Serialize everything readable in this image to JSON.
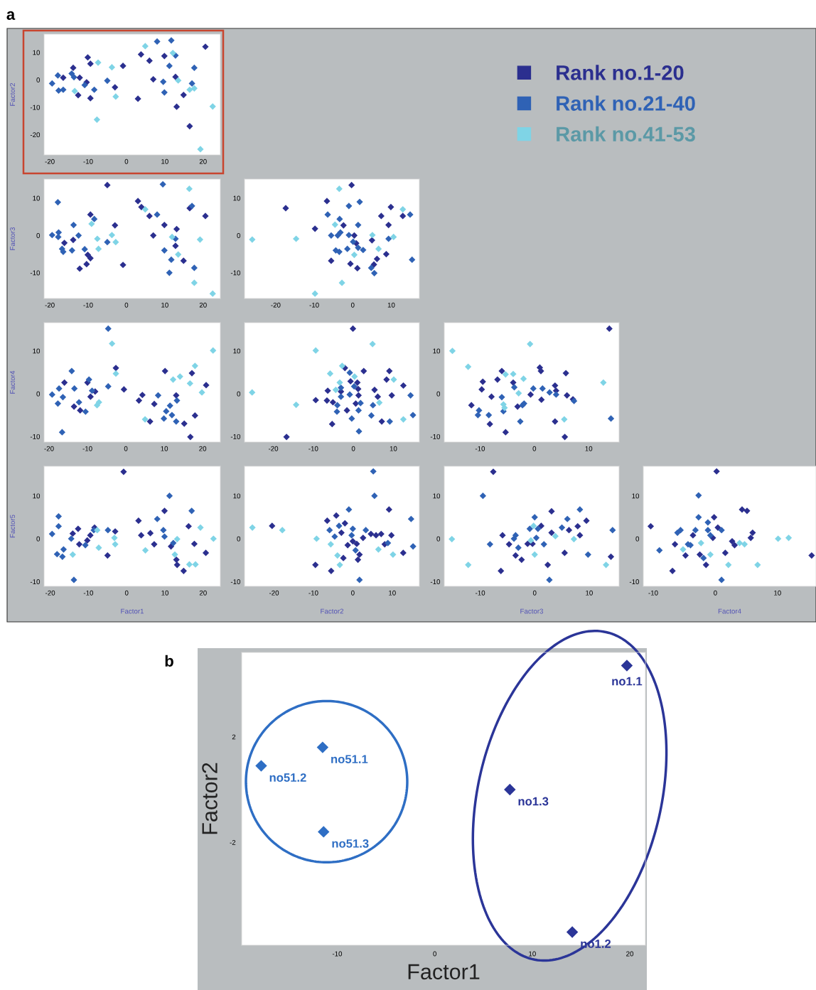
{
  "chart_data": [
    {
      "type": "scatter",
      "marker": "diamond",
      "annotations": [
        "a"
      ],
      "ylabel": "Factor2",
      "xlim": [
        -21.5,
        24.5
      ],
      "ylim": [
        -27.4,
        16.7
      ],
      "xticks": [
        -20,
        -10,
        0,
        10,
        20
      ],
      "yticks": [
        -20,
        -10,
        0,
        10
      ],
      "legend": "right",
      "series": [
        {
          "name": "Rank no.1-20",
          "color": "#2b2f8f",
          "x": [
            -16.5,
            -13.9,
            -12.2,
            -12.6,
            -10.4,
            -10.1,
            -9.4,
            -9.4,
            -3.0,
            -0.9,
            3.0,
            3.8,
            6.0,
            7.0,
            9.9,
            12.8,
            13.1,
            14.9,
            16.5,
            20.6
          ],
          "values": [
            0.8,
            4.4,
            0.8,
            -5.6,
            -0.9,
            8.2,
            5.9,
            -6.7,
            -2.7,
            5.1,
            -6.9,
            9.3,
            7.0,
            0.2,
            8.7,
            1.1,
            -9.8,
            -5.5,
            -16.9,
            12.1
          ]
        },
        {
          "name": "Rank no.21-40",
          "color": "#2f62b5",
          "x": [
            -19.4,
            -17.9,
            -17.7,
            -16.5,
            -14.3,
            -13.7,
            -10.9,
            -8.4,
            -5.0,
            8.0,
            9.6,
            9.9,
            11.2,
            11.7,
            12.8,
            17.1,
            17.7
          ],
          "values": [
            -1.3,
            1.6,
            -3.9,
            -3.6,
            2.3,
            1.0,
            -1.9,
            -3.6,
            -0.3,
            14.0,
            -0.7,
            -4.6,
            5.1,
            14.4,
            8.9,
            -1.3,
            4.4
          ]
        },
        {
          "name": "Rank no.41-53",
          "color": "#7fd4e6",
          "x": [
            -13.5,
            -7.4,
            -3.8,
            -2.8,
            -7.7,
            4.9,
            12.1,
            13.5,
            16.5,
            17.7,
            19.3,
            22.5
          ],
          "values": [
            -4.1,
            6.3,
            4.6,
            -6.1,
            -14.5,
            12.3,
            9.8,
            -0.2,
            -3.6,
            -3.1,
            -25.3,
            -9.7
          ]
        }
      ]
    },
    {
      "type": "scatter",
      "marker": "diamond",
      "ylabel": "Factor3",
      "xlim": [
        -21.5,
        24.5
      ],
      "ylim": [
        -16.9,
        15.1
      ],
      "xticks": [
        -20,
        -10,
        0,
        10,
        20
      ],
      "yticks": [
        -10,
        0,
        10
      ],
      "series": [
        {
          "color": "#2b2f8f",
          "x": [
            -16.2,
            -13.9,
            -12.2,
            -10.1,
            -10.4,
            -9.4,
            -9.4,
            -5.0,
            -3.0,
            -0.9,
            3.0,
            3.9,
            6.0,
            7.0,
            9.9,
            12.8,
            13.1,
            14.9,
            16.5,
            20.6
          ],
          "values": [
            -2.0,
            -1.2,
            -8.9,
            -5.2,
            -7.7,
            -6.1,
            5.6,
            13.5,
            2.7,
            -7.9,
            9.2,
            7.6,
            5.2,
            0.0,
            2.8,
            -2.8,
            1.7,
            -6.8,
            7.3,
            5.2
          ]
        },
        {
          "color": "#2f62b5",
          "x": [
            -19.4,
            -17.9,
            -17.7,
            -17.8,
            -16.8,
            -16.5,
            -13.8,
            -14.2,
            -12.5,
            -10.9,
            -8.4,
            -5.0,
            8.0,
            9.5,
            9.9,
            11.2,
            11.7,
            12.8,
            17.1,
            17.7
          ],
          "values": [
            0.1,
            8.9,
            0.8,
            -0.4,
            -3.6,
            -4.4,
            2.8,
            -4.0,
            0.0,
            -3.7,
            4.4,
            -1.8,
            5.6,
            13.7,
            -4.0,
            -10.0,
            -6.5,
            -0.9,
            7.9,
            -8.7
          ]
        },
        {
          "color": "#7fd4e6",
          "x": [
            -9.1,
            -7.6,
            -7.3,
            -3.8,
            -2.8,
            4.9,
            11.9,
            13.5,
            16.4,
            17.7,
            19.2,
            22.5
          ],
          "values": [
            3.1,
            -0.9,
            -3.6,
            0.1,
            -1.8,
            7.0,
            -0.4,
            -5.1,
            12.5,
            -12.7,
            -1.1,
            -15.6
          ]
        }
      ]
    },
    {
      "type": "scatter",
      "marker": "diamond",
      "xlim": [
        -28.1,
        17.3
      ],
      "ylim": [
        -16.9,
        15.1
      ],
      "xticks": [
        -20,
        -10,
        0,
        10
      ],
      "yticks": [
        -10,
        0,
        10
      ],
      "series": [
        {
          "color": "#2b2f8f",
          "x": [
            -17.4,
            -9.8,
            -6.7,
            -5.6,
            -2.4,
            -0.6,
            -0.3,
            0.4,
            0.9,
            1.2,
            5.0,
            5.5,
            6.3,
            7.4,
            8.7,
            9.3,
            9.9,
            13.0
          ],
          "values": [
            7.3,
            1.8,
            9.2,
            -6.8,
            2.7,
            -7.6,
            13.5,
            0.0,
            -2.1,
            -8.8,
            -1.3,
            -7.8,
            -6.3,
            5.2,
            -5.0,
            2.8,
            7.6,
            5.2
          ]
        },
        {
          "color": "#2f62b5",
          "x": [
            -6.5,
            -5.6,
            -3.4,
            -4.4,
            -3.5,
            -3.2,
            -3.9,
            -1.4,
            -1.0,
            -1.0,
            0.1,
            1.4,
            1.4,
            1.8,
            2.7,
            4.8,
            5.6,
            9.3,
            14.9,
            15.4
          ],
          "values": [
            5.6,
            0.0,
            4.4,
            -4.0,
            -4.4,
            0.8,
            0.0,
            -3.6,
            7.9,
            0.1,
            -1.7,
            2.8,
            -3.3,
            9.0,
            -3.9,
            -8.7,
            -10.1,
            -0.9,
            5.6,
            -6.5
          ]
        },
        {
          "color": "#7fd4e6",
          "x": [
            -26.1,
            -14.7,
            -9.8,
            -4.6,
            -3.5,
            -2.8,
            0.4,
            5.1,
            6.7,
            10.6,
            13.0
          ],
          "values": [
            -1.1,
            -0.9,
            -15.6,
            2.9,
            12.5,
            -12.7,
            -5.2,
            0.1,
            -3.6,
            -0.4,
            7.0
          ]
        }
      ]
    },
    {
      "type": "scatter",
      "marker": "diamond",
      "ylabel": "Factor4",
      "xlim": [
        -21.3,
        24.6
      ],
      "ylim": [
        -11.3,
        16.6
      ],
      "xticks": [
        -20,
        -10,
        0,
        10,
        20
      ],
      "yticks": [
        -10,
        0,
        10
      ],
      "series": [
        {
          "color": "#2b2f8f",
          "x": [
            -16.0,
            -13.5,
            -11.9,
            -10.0,
            -9.2,
            -8.0,
            -2.6,
            -0.5,
            3.4,
            4.3,
            6.3,
            7.4,
            10.2,
            13.1,
            15.2,
            17.2,
            16.8,
            18.0,
            20.9
          ],
          "values": [
            2.6,
            -3.0,
            -3.9,
            2.6,
            -0.7,
            0.5,
            6.0,
            1.0,
            -1.6,
            -0.3,
            -6.5,
            -2.4,
            5.3,
            -0.4,
            -7.0,
            4.8,
            -10.1,
            -5.1,
            2.0
          ]
        },
        {
          "color": "#2f62b5",
          "x": [
            -19.2,
            -17.4,
            -17.7,
            -16.6,
            -16.4,
            -14.1,
            -13.4,
            -12.2,
            -10.5,
            -9.6,
            -8.8,
            -4.6,
            -4.6,
            8.4,
            9.9,
            10.5,
            11.5,
            12.0,
            13.3,
            13.1
          ],
          "values": [
            -0.2,
            1.2,
            -2.3,
            -9.0,
            -0.8,
            5.3,
            1.2,
            -2.0,
            -4.2,
            3.3,
            0.7,
            15.2,
            1.7,
            -0.4,
            -5.8,
            -4.1,
            -2.8,
            -5.0,
            -1.6,
            -6.5
          ]
        },
        {
          "color": "#7fd4e6",
          "x": [
            -7.5,
            -7.0,
            -3.6,
            -2.6,
            5.0,
            12.3,
            14.1,
            16.7,
            18.0,
            19.8,
            22.7
          ],
          "values": [
            -2.7,
            -2.0,
            11.7,
            4.7,
            -6.0,
            3.3,
            4.0,
            2.4,
            6.5,
            0.3,
            10.1
          ]
        }
      ]
    },
    {
      "type": "scatter",
      "marker": "diamond",
      "xlim": [
        -27.2,
        16.5
      ],
      "ylim": [
        -11.3,
        16.6
      ],
      "xticks": [
        -20,
        -10,
        0,
        10
      ],
      "yticks": [
        -10,
        0,
        10
      ],
      "series": [
        {
          "color": "#2b2f8f",
          "x": [
            -16.7,
            -9.4,
            -6.4,
            -6.6,
            -5.3,
            -5.1,
            -3.1,
            -2.1,
            -1.6,
            -0.7,
            -0.1,
            0.6,
            1.0,
            1.2,
            1.3,
            2.6,
            5.3,
            6.1,
            7.1,
            8.3,
            9.0,
            9.6,
            12.5
          ],
          "values": [
            -10.1,
            -1.5,
            0.7,
            -1.6,
            -7.1,
            -2.0,
            0.5,
            6.0,
            -3.9,
            2.9,
            15.2,
            -2.3,
            2.6,
            1.1,
            -0.4,
            5.3,
            0.9,
            -0.7,
            -6.5,
            3.3,
            5.3,
            -0.4,
            1.9
          ]
        },
        {
          "color": "#2f62b5",
          "x": [
            -4.0,
            -4.1,
            -3.1,
            -3.1,
            -0.9,
            -0.9,
            -0.4,
            0.2,
            1.3,
            1.4,
            1.8,
            4.5,
            4.9,
            9.1,
            14.3,
            14.9
          ],
          "values": [
            -2.7,
            -4.2,
            -0.7,
            1.4,
            -0.2,
            4.9,
            -5.8,
            1.7,
            -3.9,
            -8.8,
            -2.2,
            -5.1,
            -2.7,
            -6.5,
            -0.4,
            -5.0
          ]
        },
        {
          "color": "#7fd4e6",
          "x": [
            -25.3,
            -14.3,
            -9.4,
            -5.8,
            -4.4,
            -3.4,
            -2.8,
            0.3,
            4.8,
            6.5,
            10.1,
            12.5
          ],
          "values": [
            0.3,
            -2.6,
            10.1,
            4.7,
            0.9,
            2.6,
            6.5,
            4.0,
            11.6,
            -2.1,
            3.3,
            -6.0
          ]
        }
      ]
    },
    {
      "type": "scatter",
      "marker": "diamond",
      "xlim": [
        -16.6,
        15.6
      ],
      "ylim": [
        -11.3,
        16.6
      ],
      "xticks": [
        -10,
        0,
        10
      ],
      "yticks": [
        -10,
        0,
        10
      ],
      "series": [
        {
          "color": "#2b2f8f",
          "x": [
            -11.6,
            -9.5,
            -9.7,
            -8.2,
            -7.9,
            -6.8,
            -6.0,
            -5.3,
            -3.9,
            -3.1,
            -0.7,
            1.3,
            1.0,
            1.2,
            3.8,
            4.0,
            3.8,
            5.6,
            5.8,
            6.0,
            7.1,
            13.8
          ],
          "values": [
            -2.7,
            2.8,
            1.0,
            -7.1,
            -0.7,
            3.3,
            5.3,
            -9.0,
            2.6,
            -3.0,
            -0.2,
            -1.4,
            6.1,
            5.3,
            1.9,
            0.7,
            -6.5,
            -10.1,
            4.8,
            -0.4,
            -1.3,
            15.2
          ]
        },
        {
          "color": "#2f62b5",
          "x": [
            -10.2,
            -10.4,
            -8.4,
            -6.0,
            -5.7,
            -3.7,
            -2.6,
            -2.2,
            -1.9,
            -0.2,
            1.5,
            2.8,
            4.0,
            7.3,
            14.1
          ],
          "values": [
            -3.9,
            -5.0,
            -5.0,
            -0.8,
            -4.1,
            1.5,
            -6.5,
            -2.7,
            -2.3,
            1.2,
            1.2,
            0.3,
            -0.2,
            -1.7,
            -5.8
          ]
        },
        {
          "color": "#7fd4e6",
          "x": [
            -15.1,
            -12.2,
            -5.7,
            -5.5,
            -5.3,
            -3.9,
            -2.9,
            -2.0,
            -0.8,
            5.5,
            12.7
          ],
          "values": [
            10.0,
            6.3,
            -2.5,
            -3.3,
            4.5,
            4.6,
            0.1,
            3.5,
            11.6,
            -6.0,
            2.6
          ]
        }
      ]
    },
    {
      "type": "scatter",
      "marker": "diamond",
      "xlabel": "Factor1",
      "ylabel": "Factor5",
      "xlim": [
        -21.6,
        24.5
      ],
      "ylim": [
        -11.1,
        16.9
      ],
      "xticks": [
        -20,
        -10,
        0,
        10,
        20
      ],
      "yticks": [
        -10,
        0,
        10
      ],
      "series": [
        {
          "color": "#2b2f8f",
          "x": [
            -14.1,
            -12.7,
            -12.4,
            -10.3,
            -9.5,
            -8.4,
            -5.0,
            -3.0,
            -0.8,
            3.1,
            3.8,
            6.2,
            7.2,
            9.9,
            11.6,
            13.0,
            13.2,
            14.9,
            16.2,
            17.7,
            20.7
          ],
          "values": [
            1.2,
            2.3,
            -1.3,
            -0.4,
            0.8,
            2.6,
            -3.9,
            1.7,
            15.6,
            4.2,
            0.8,
            1.3,
            -1.3,
            6.5,
            -1.8,
            -4.9,
            -6.1,
            -7.5,
            2.9,
            -1.2,
            -3.3
          ]
        },
        {
          "color": "#2f62b5",
          "x": [
            -19.5,
            -17.8,
            -17.8,
            -18.2,
            -16.8,
            -16.5,
            -14.5,
            -13.8,
            -10.8,
            -8.6,
            -4.9,
            8.0,
            9.6,
            9.9,
            11.2,
            12.2,
            17.0
          ],
          "values": [
            1.1,
            5.2,
            2.9,
            -3.6,
            -4.2,
            -2.5,
            0.0,
            -9.6,
            -1.5,
            2.0,
            2.0,
            4.6,
            2.0,
            0.5,
            10.0,
            -1.0,
            6.5
          ]
        },
        {
          "color": "#7fd4e6",
          "x": [
            -14.1,
            -7.7,
            -7.3,
            -3.2,
            -3.0,
            4.9,
            13.2,
            12.6,
            16.4,
            18.0,
            19.3,
            22.7
          ],
          "values": [
            -3.7,
            2.0,
            -2.1,
            0.2,
            -1.3,
            -2.7,
            -0.1,
            -3.7,
            -6.0,
            -6.0,
            2.6,
            0.0
          ]
        }
      ]
    },
    {
      "type": "scatter",
      "marker": "diamond",
      "xlabel": "Factor2",
      "xlim": [
        -27.5,
        16.9
      ],
      "ylim": [
        -11.1,
        16.9
      ],
      "xticks": [
        -20,
        -10,
        0,
        10
      ],
      "yticks": [
        -10,
        0,
        10
      ],
      "series": [
        {
          "color": "#2b2f8f",
          "x": [
            -20.5,
            -9.5,
            -6.5,
            -5.5,
            -4.2,
            -2.9,
            -2.4,
            -2.0,
            -1.3,
            0.0,
            1.0,
            1.3,
            1.7,
            2.6,
            4.6,
            5.9,
            7.2,
            8.1,
            9.2,
            9.8,
            12.8
          ],
          "values": [
            3.0,
            -6.1,
            4.2,
            -7.5,
            5.4,
            1.4,
            -4.5,
            3.6,
            -1.5,
            -0.6,
            -1.2,
            -4.9,
            -3.7,
            0.2,
            1.1,
            0.8,
            1.1,
            -1.3,
            6.8,
            0.8,
            -3.3
          ]
        },
        {
          "color": "#2f62b5",
          "x": [
            -5.9,
            -4.6,
            -3.5,
            -1.0,
            -0.3,
            0.0,
            0.7,
            1.7,
            3.3,
            5.2,
            5.5,
            8.9,
            14.8,
            15.3
          ],
          "values": [
            2.0,
            0.5,
            3.0,
            6.8,
            0.8,
            2.3,
            -2.7,
            -9.6,
            2.0,
            15.7,
            10.0,
            -1.0,
            4.6,
            -1.8
          ]
        },
        {
          "color": "#7fd4e6",
          "x": [
            -25.5,
            -17.9,
            -9.2,
            -5.6,
            -3.9,
            -3.3,
            6.5,
            10.2
          ],
          "values": [
            2.6,
            2.0,
            0.0,
            -1.3,
            -3.9,
            -6.1,
            -2.5,
            -3.7
          ]
        }
      ]
    },
    {
      "type": "scatter",
      "marker": "diamond",
      "xlabel": "Factor3",
      "xlim": [
        -16.6,
        15.5
      ],
      "ylim": [
        -11.1,
        16.9
      ],
      "xticks": [
        -10,
        0,
        10
      ],
      "yticks": [
        -10,
        0,
        10
      ],
      "series": [
        {
          "color": "#2b2f8f",
          "x": [
            -7.6,
            -6.2,
            -5.9,
            -4.7,
            -3.5,
            -2.4,
            -1.3,
            -0.4,
            1.2,
            2.4,
            3.1,
            3.1,
            5.5,
            6.3,
            7.9,
            8.3,
            9.5,
            14.0
          ],
          "values": [
            15.6,
            -7.5,
            0.8,
            -1.3,
            -3.9,
            -4.9,
            -1.2,
            -1.2,
            3.0,
            -6.1,
            6.4,
            1.4,
            -3.3,
            2.0,
            2.9,
            0.8,
            4.2,
            -4.2
          ]
        },
        {
          "color": "#2f62b5",
          "x": [
            -9.5,
            -8.2,
            -3.8,
            -3.5,
            -3.0,
            -0.9,
            0.0,
            0.3,
            0.6,
            1.7,
            2.7,
            5.0,
            6.0,
            8.3,
            9.8,
            14.3
          ],
          "values": [
            10.0,
            -1.3,
            0.0,
            0.8,
            -2.1,
            2.3,
            5.0,
            0.2,
            2.3,
            -1.3,
            -9.6,
            2.6,
            4.6,
            6.8,
            -3.7,
            2.0
          ]
        },
        {
          "color": "#7fd4e6",
          "x": [
            -15.2,
            -12.2,
            -0.7,
            -0.2,
            0.0,
            3.8,
            7.2,
            13.1
          ],
          "values": [
            -0.1,
            -6.1,
            -0.4,
            3.0,
            -3.7,
            0.6,
            -0.1,
            -6.1
          ]
        }
      ]
    },
    {
      "type": "scatter",
      "marker": "diamond",
      "xlabel": "Factor4",
      "xlim": [
        -11.6,
        16.2
      ],
      "ylim": [
        -11.1,
        16.9
      ],
      "xticks": [
        -10,
        0,
        10
      ],
      "yticks": [
        -10,
        0,
        10
      ],
      "series": [
        {
          "color": "#2b2f8f",
          "x": [
            -10.4,
            -6.9,
            -6.5,
            -4.8,
            -3.6,
            -2.5,
            -1.5,
            -0.4,
            -0.2,
            0.2,
            0.4,
            1.6,
            2.7,
            3.1,
            4.3,
            5.1,
            5.7,
            6.0,
            15.5
          ],
          "values": [
            2.9,
            -7.5,
            -1.3,
            -3.9,
            0.8,
            -3.7,
            -6.1,
            0.2,
            5.0,
            15.7,
            2.6,
            -3.3,
            -0.6,
            -1.5,
            6.8,
            6.5,
            0.2,
            1.4,
            -3.9
          ]
        },
        {
          "color": "#2f62b5",
          "x": [
            -9.0,
            -6.1,
            -5.6,
            -4.4,
            -4.0,
            -3.2,
            -2.7,
            -2.7,
            -1.9,
            -1.2,
            -1.2,
            -0.8,
            1.0,
            1.0
          ],
          "values": [
            -2.7,
            1.4,
            2.0,
            -1.3,
            -1.5,
            2.0,
            10.1,
            5.0,
            -4.5,
            3.8,
            2.0,
            0.8,
            2.0,
            -9.6
          ]
        },
        {
          "color": "#7fd4e6",
          "x": [
            -5.2,
            -2.3,
            -0.8,
            2.1,
            3.9,
            4.7,
            6.8,
            10.1,
            11.8
          ],
          "values": [
            -2.5,
            -1.0,
            -3.7,
            -6.1,
            -1.0,
            -1.3,
            -6.1,
            0.0,
            0.2
          ]
        }
      ]
    },
    {
      "type": "scatter",
      "marker": "diamond",
      "xlabel": "Factor1",
      "ylabel": "Factor2",
      "xlim": [
        -19.8,
        21.6
      ],
      "ylim": [
        -5.9,
        5.2
      ],
      "xticks": [
        -10,
        0,
        10,
        20
      ],
      "yticks": [
        -2,
        2
      ],
      "annotations": [
        "b",
        {
          "text": "no1.1",
          "x": 19.7,
          "y": 4.7
        },
        {
          "text": "no1.2",
          "x": 14.1,
          "y": -5.4
        },
        {
          "text": "no1.3",
          "x": 7.7,
          "y": 0.0
        },
        {
          "text": "no51.1",
          "x": -11.5,
          "y": 1.6
        },
        {
          "text": "no51.2",
          "x": -17.8,
          "y": 0.9
        },
        {
          "text": "no51.3",
          "x": -11.4,
          "y": -1.6
        }
      ],
      "series": [
        {
          "color": "#2b3598",
          "x": [
            19.7,
            14.1,
            7.7
          ],
          "values": [
            4.7,
            -5.4,
            0.0
          ]
        },
        {
          "color": "#2e6ec4",
          "x": [
            -11.5,
            -17.8,
            -11.4
          ],
          "values": [
            1.6,
            0.9,
            -1.6
          ]
        }
      ]
    }
  ]
}
